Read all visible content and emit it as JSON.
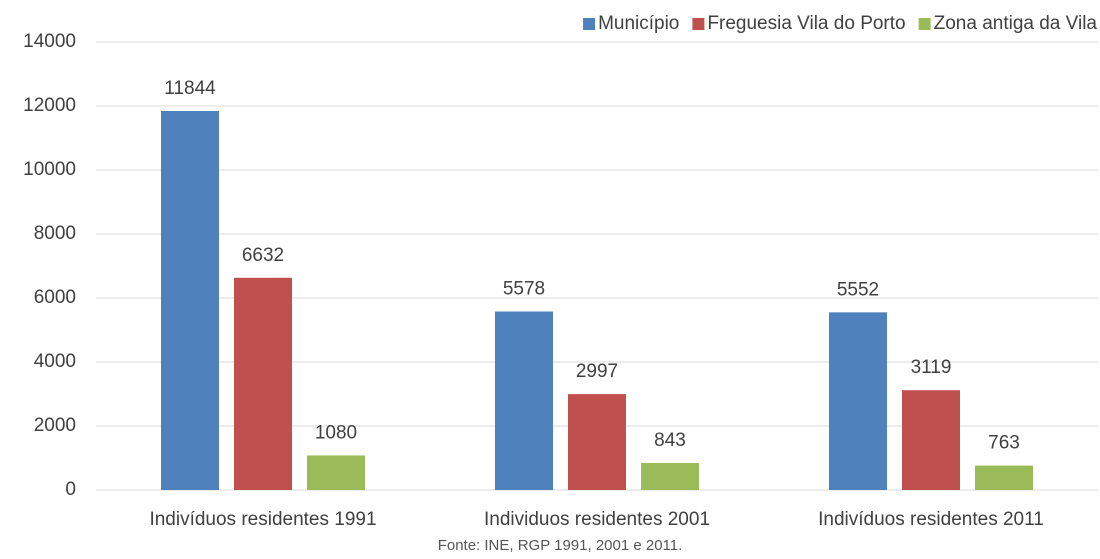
{
  "chart_data": {
    "type": "bar",
    "categories": [
      "Indivíduos residentes 1991",
      "Individuos residentes 2001",
      "Indivíduos residentes 2011"
    ],
    "series": [
      {
        "name": "Município",
        "color": "#4f81bd",
        "values": [
          11844,
          5578,
          5552
        ]
      },
      {
        "name": "Freguesia Vila do Porto",
        "color": "#c0504d",
        "values": [
          6632,
          2997,
          3119
        ]
      },
      {
        "name": "Zona antiga da Vila",
        "color": "#9bbb59",
        "values": [
          1080,
          843,
          763
        ]
      }
    ],
    "ylim": [
      0,
      14000
    ],
    "yticks": [
      0,
      2000,
      4000,
      6000,
      8000,
      10000,
      12000,
      14000
    ],
    "grid": true,
    "legend": "top-right",
    "source": "Fonte: INE, RGP 1991, 2001 e 2011."
  }
}
